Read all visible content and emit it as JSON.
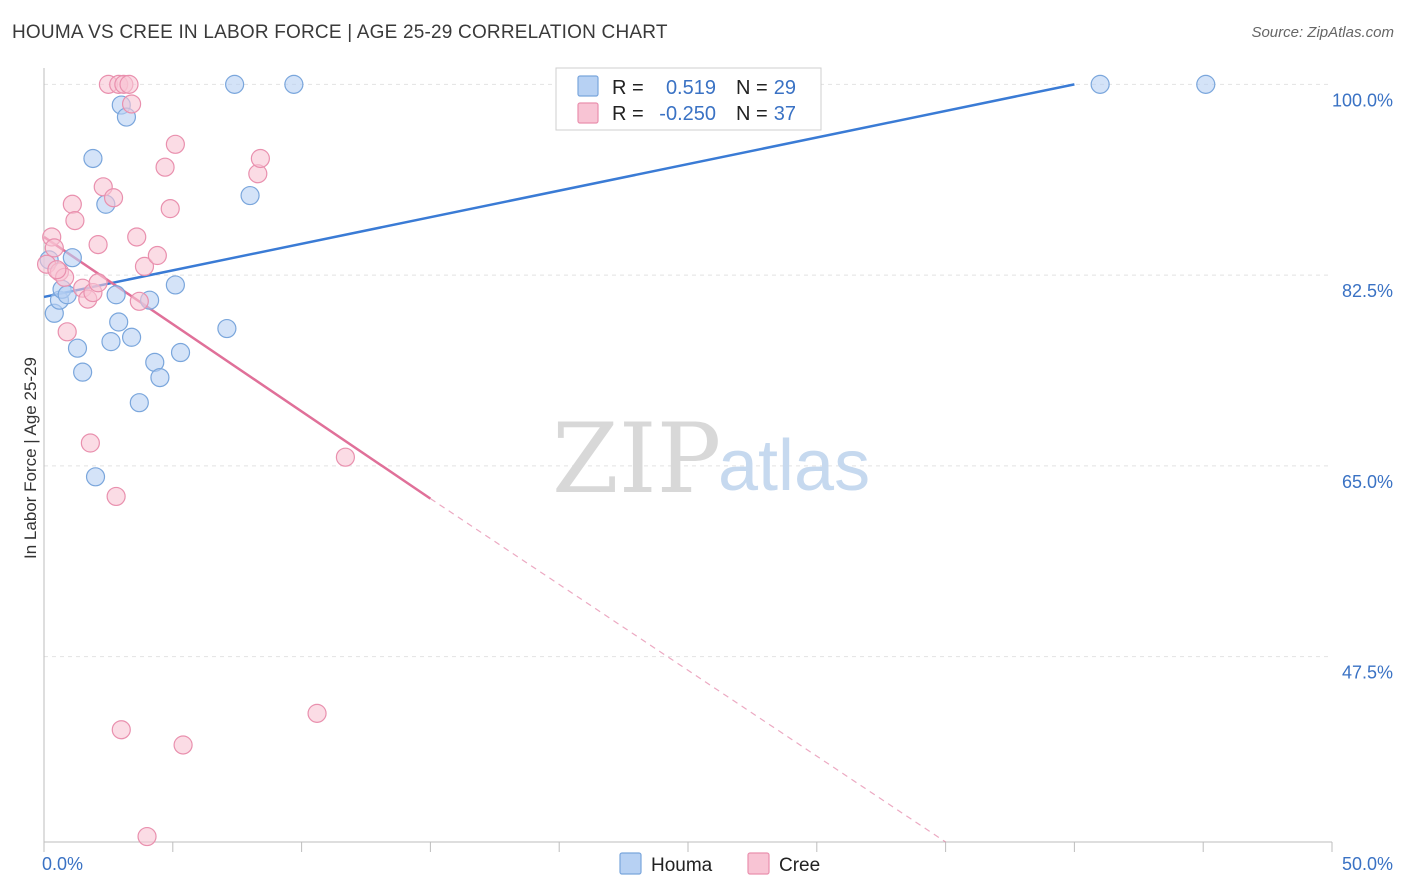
{
  "title": "HOUMA VS CREE IN LABOR FORCE | AGE 25-29 CORRELATION CHART",
  "source": "Source: ZipAtlas.com",
  "watermark": {
    "zip": "ZIP",
    "atlas": "atlas"
  },
  "colors": {
    "houma_fill": "#b7d1f3",
    "houma_stroke": "#7aa6dc",
    "houma_line": "#3a7bd5",
    "cree_fill": "#f8c4d4",
    "cree_stroke": "#e990ae",
    "cree_line": "#e07099",
    "axis_label": "#3a72c4",
    "grid": "#e2e2e2"
  },
  "legend": {
    "houma": {
      "r_label": "R =",
      "r_value": "0.519",
      "n_label": "N =",
      "n_value": "29"
    },
    "cree": {
      "r_label": "R =",
      "r_value": "-0.250",
      "n_label": "N =",
      "n_value": "37"
    }
  },
  "bottom_legend": [
    "Houma",
    "Cree"
  ],
  "chart_data": {
    "type": "scatter",
    "title": "HOUMA VS CREE IN LABOR FORCE | AGE 25-29 CORRELATION CHART",
    "xlabel": "",
    "ylabel": "In Labor Force | Age 25-29",
    "xlim": [
      0,
      50
    ],
    "ylim": [
      30.5,
      101.5
    ],
    "x_tick_labels": [
      "0.0%",
      "50.0%"
    ],
    "y_ticks": [
      47.5,
      65.0,
      82.5,
      100.0
    ],
    "y_tick_labels": [
      "47.5%",
      "65.0%",
      "82.5%",
      "100.0%"
    ],
    "grid": true,
    "legend_position": "top-center",
    "series": [
      {
        "name": "Houma",
        "points": [
          [
            0.2,
            83.9
          ],
          [
            0.4,
            79.0
          ],
          [
            0.6,
            80.2
          ],
          [
            0.7,
            81.2
          ],
          [
            0.9,
            80.7
          ],
          [
            1.1,
            84.1
          ],
          [
            1.3,
            75.8
          ],
          [
            1.5,
            73.6
          ],
          [
            1.9,
            93.2
          ],
          [
            2.0,
            64.0
          ],
          [
            2.4,
            89.0
          ],
          [
            2.6,
            76.4
          ],
          [
            2.8,
            80.7
          ],
          [
            2.9,
            78.2
          ],
          [
            3.0,
            98.1
          ],
          [
            3.2,
            97.0
          ],
          [
            3.4,
            76.8
          ],
          [
            3.7,
            70.8
          ],
          [
            4.1,
            80.2
          ],
          [
            4.3,
            74.5
          ],
          [
            4.5,
            73.1
          ],
          [
            5.1,
            81.6
          ],
          [
            5.3,
            75.4
          ],
          [
            7.1,
            77.6
          ],
          [
            7.4,
            100.0
          ],
          [
            8.0,
            89.8
          ],
          [
            9.7,
            100.0
          ],
          [
            41.0,
            100.0
          ],
          [
            45.1,
            100.0
          ]
        ],
        "trend": {
          "x0": 0,
          "y0": 80.5,
          "x1": 40,
          "y1": 100.0
        }
      },
      {
        "name": "Cree",
        "points": [
          [
            0.1,
            83.5
          ],
          [
            0.3,
            86.0
          ],
          [
            0.4,
            85.0
          ],
          [
            0.6,
            82.8
          ],
          [
            0.8,
            82.3
          ],
          [
            0.9,
            77.3
          ],
          [
            1.1,
            89.0
          ],
          [
            1.2,
            87.5
          ],
          [
            1.5,
            81.3
          ],
          [
            1.7,
            80.3
          ],
          [
            1.8,
            67.1
          ],
          [
            1.9,
            80.9
          ],
          [
            2.1,
            81.8
          ],
          [
            2.1,
            85.3
          ],
          [
            2.3,
            90.6
          ],
          [
            2.5,
            100.0
          ],
          [
            2.7,
            89.6
          ],
          [
            2.8,
            62.2
          ],
          [
            2.9,
            100.0
          ],
          [
            3.0,
            40.8
          ],
          [
            3.1,
            100.0
          ],
          [
            3.3,
            100.0
          ],
          [
            3.4,
            98.2
          ],
          [
            3.6,
            86.0
          ],
          [
            3.7,
            80.1
          ],
          [
            3.9,
            83.3
          ],
          [
            4.0,
            31.0
          ],
          [
            4.4,
            84.3
          ],
          [
            4.7,
            92.4
          ],
          [
            4.9,
            88.6
          ],
          [
            5.1,
            94.5
          ],
          [
            5.4,
            39.4
          ],
          [
            8.3,
            91.8
          ],
          [
            8.4,
            93.2
          ],
          [
            10.6,
            42.3
          ],
          [
            11.7,
            65.8
          ],
          [
            0.5,
            83.0
          ]
        ],
        "trend": {
          "x0": 0,
          "y0": 86.0,
          "x1": 15,
          "y1": 62.0
        },
        "trend_dashed_extension": {
          "x0": 15,
          "y0": 62.0,
          "x1": 35,
          "y1": 30.5
        }
      }
    ]
  }
}
